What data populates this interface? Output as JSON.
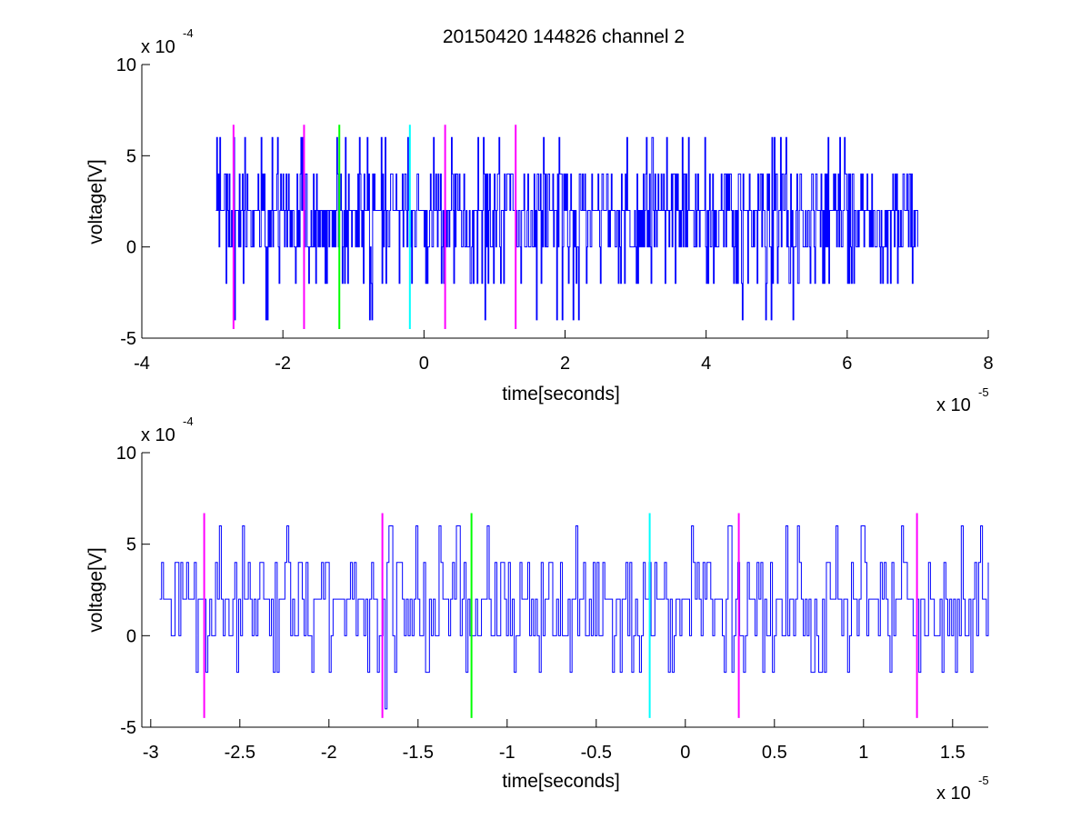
{
  "figure": {
    "title": "20150420 144826 channel 2",
    "colors": {
      "signal": "#0000ff",
      "magenta": "#ff00ff",
      "green": "#00ff00",
      "cyan": "#00ffff",
      "axes": "#000000",
      "background": "#ffffff"
    }
  },
  "chart_data": [
    {
      "type": "line",
      "title": "20150420 144826 channel 2",
      "xlabel": "time[seconds]",
      "ylabel": "voltage[V]",
      "x_multiplier_text": {
        "base": "x 10",
        "exp": "-5"
      },
      "y_multiplier_text": {
        "base": "x 10",
        "exp": "-4"
      },
      "xlim": [
        -4,
        8
      ],
      "ylim": [
        -5,
        10
      ],
      "xticks": [
        "-4",
        "-2",
        "0",
        "2",
        "4",
        "6",
        "8"
      ],
      "yticks": [
        "-5",
        "0",
        "5",
        "10"
      ],
      "grid": false,
      "signal_range_x": [
        -2.95,
        7.0
      ],
      "signal_levels_y": [
        -4,
        -2,
        0,
        2,
        4,
        6
      ],
      "markers": [
        {
          "x": -2.7,
          "color": "magenta",
          "y_range": [
            -4.5,
            6.7
          ]
        },
        {
          "x": -1.7,
          "color": "magenta",
          "y_range": [
            -4.5,
            6.7
          ]
        },
        {
          "x": -1.2,
          "color": "green",
          "y_range": [
            -4.5,
            6.7
          ]
        },
        {
          "x": -0.2,
          "color": "cyan",
          "y_range": [
            -4.5,
            6.7
          ]
        },
        {
          "x": 0.3,
          "color": "magenta",
          "y_range": [
            -4.5,
            6.7
          ]
        },
        {
          "x": 1.3,
          "color": "magenta",
          "y_range": [
            -4.5,
            6.7
          ]
        }
      ]
    },
    {
      "type": "line",
      "title": "",
      "xlabel": "time[seconds]",
      "ylabel": "voltage[V]",
      "x_multiplier_text": {
        "base": "x 10",
        "exp": "-5"
      },
      "y_multiplier_text": {
        "base": "x 10",
        "exp": "-4"
      },
      "xlim": [
        -3.05,
        1.7
      ],
      "ylim": [
        -5,
        10
      ],
      "xticks": [
        "-3",
        "-2.5",
        "-2",
        "-1.5",
        "-1",
        "-0.5",
        "0",
        "0.5",
        "1",
        "1.5"
      ],
      "xtick_values": [
        -3,
        -2.5,
        -2,
        -1.5,
        -1,
        -0.5,
        0,
        0.5,
        1,
        1.5
      ],
      "yticks": [
        "-5",
        "0",
        "5",
        "10"
      ],
      "grid": false,
      "signal_range_x": [
        -2.95,
        1.7
      ],
      "signal_levels_y": [
        -4,
        -2,
        0,
        2,
        4,
        6
      ],
      "markers": [
        {
          "x": -2.7,
          "color": "magenta",
          "y_range": [
            -4.5,
            6.7
          ]
        },
        {
          "x": -1.7,
          "color": "magenta",
          "y_range": [
            -4.5,
            6.7
          ]
        },
        {
          "x": -1.2,
          "color": "green",
          "y_range": [
            -4.5,
            6.7
          ]
        },
        {
          "x": -0.2,
          "color": "cyan",
          "y_range": [
            -4.5,
            6.7
          ]
        },
        {
          "x": 0.3,
          "color": "magenta",
          "y_range": [
            -4.5,
            6.7
          ]
        },
        {
          "x": 1.3,
          "color": "magenta",
          "y_range": [
            -4.5,
            6.7
          ]
        }
      ]
    }
  ]
}
